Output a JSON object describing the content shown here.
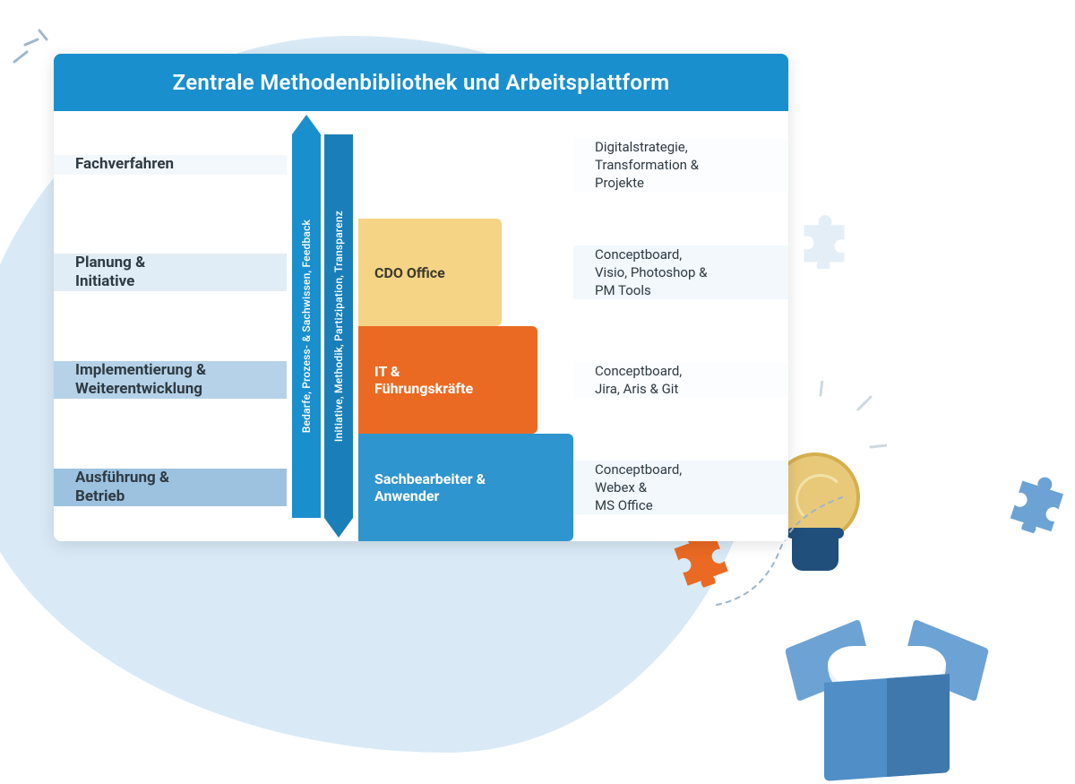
{
  "card": {
    "header_bg": "#1a8fcd",
    "title": "Zentrale Methodenbibliothek und Arbeitsplattform"
  },
  "rows": [
    {
      "label": "Fachverfahren",
      "row_bg": "#f3f8fc",
      "role_label": "",
      "role_bg": "transparent",
      "role_color": "#2f3a42",
      "tools": "Digitalstrategie,\nTransformation &\nProjekte"
    },
    {
      "label": "Planung &\nInitiative",
      "row_bg": "#e0ecf6",
      "role_label": "CDO Office",
      "role_bg": "#f5d486",
      "role_color": "#3a3a2a",
      "tools": "Conceptboard,\nVisio, Photoshop &\nPM Tools"
    },
    {
      "label": "Implementierung &\nWeiterentwicklung",
      "row_bg": "#b6d2e8",
      "role_label": "IT &\nFührungskräfte",
      "role_bg": "#ea6a23",
      "role_color": "#ffffff",
      "tools": "Conceptboard,\nJira, Aris & Git"
    },
    {
      "label": "Ausführung &\nBetrieb",
      "row_bg": "#9cc2e0",
      "role_label": "Sachbearbeiter &\nAnwender",
      "role_bg": "#2f95cf",
      "role_color": "#ffffff",
      "tools": "Conceptboard,\nWebex &\nMS Office"
    }
  ],
  "arrows": {
    "up_bg": "#1a8fcd",
    "up_text": "Bedarfe, Prozess- & Sachwissen, Feedback",
    "down_bg": "#1a7fb8",
    "down_text": "Initiative, Methodik, Partizipation, Transparenz"
  },
  "illustration": {
    "puzzle_orange": "#ea6a23",
    "puzzle_blue": "#6ca3d4",
    "plane_stroke": "#4a6b86"
  }
}
